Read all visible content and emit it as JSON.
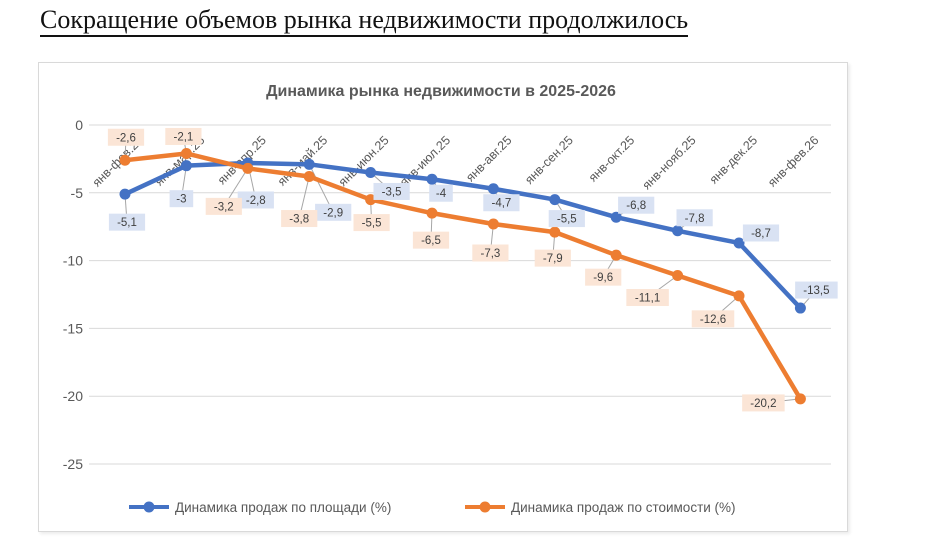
{
  "heading": "Сокращение объемов рынка недвижимости продолжилось",
  "chart_data": {
    "type": "line",
    "title": "Динамика рынка недвижимости в 2025-2026",
    "categories": [
      "янв-фев.25",
      "янв-мар.25",
      "янв-апр.25",
      "янв-май.25",
      "янв-июн.25",
      "янв-июл.25",
      "янв-авг.25",
      "янв-сен.25",
      "янв-окт.25",
      "янв-нояб.25",
      "янв-дек.25",
      "янв-фев.26"
    ],
    "series": [
      {
        "name": "Динамика продаж по площади (%)",
        "color": "#4472C4",
        "label_bg": "#D9E2F3",
        "values": [
          -5.1,
          -3,
          -2.8,
          -2.9,
          -3.5,
          -4,
          -4.7,
          -5.5,
          -6.8,
          -7.8,
          -8.7,
          -13.5
        ]
      },
      {
        "name": "Динамика продаж по стоимости (%)",
        "color": "#ED7D31",
        "label_bg": "#FBE5D6",
        "values": [
          -2.6,
          -2.1,
          -3.2,
          -3.8,
          -5.5,
          -6.5,
          -7.3,
          -7.9,
          -9.6,
          -11.1,
          -12.6,
          -20.2
        ]
      }
    ],
    "y_ticks": [
      0,
      -5,
      -10,
      -15,
      -20,
      -25
    ],
    "ylim": [
      -25,
      0
    ],
    "grid": true,
    "data_labels": true,
    "decimal_separator": ",",
    "legend_position": "bottom",
    "marker": "circle"
  },
  "style": {
    "grid_color": "#D9D9D9",
    "axis_text_color": "#595959",
    "title_color": "#595959",
    "label_text_color": "#404040",
    "leader_color": "#A6A6A6",
    "legend_text_color": "#595959"
  }
}
